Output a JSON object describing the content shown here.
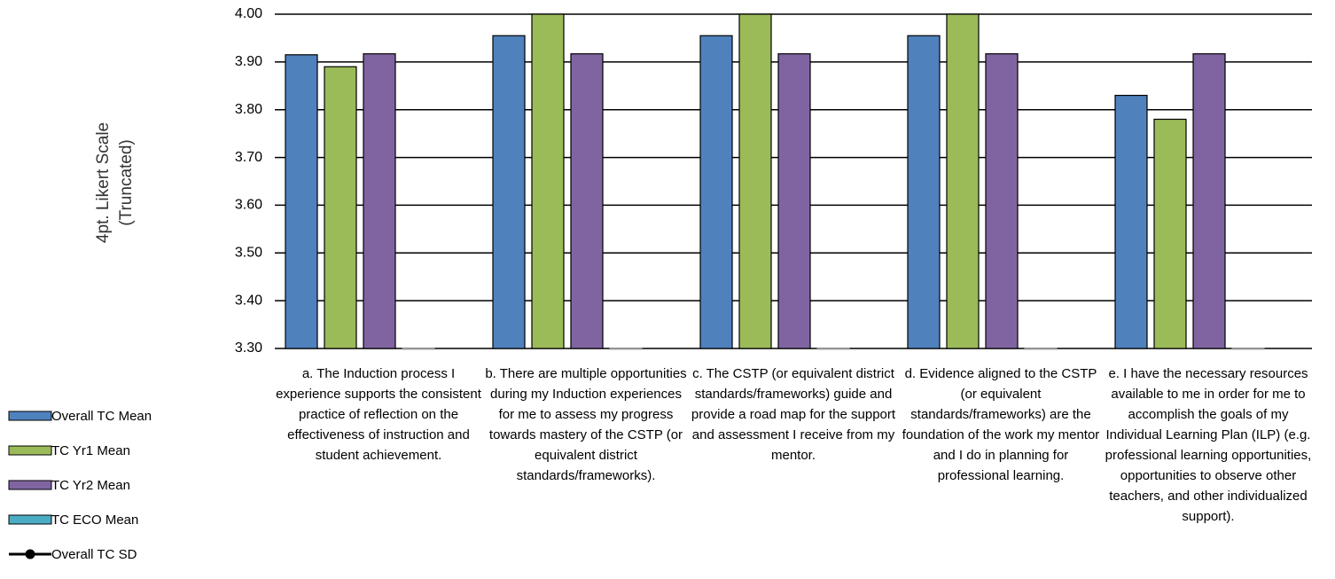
{
  "chart_data": {
    "type": "bar",
    "ylabel": "4pt. Likert Scale (Truncated)",
    "categories": [
      "a. The Induction process I experience supports the consistent practice of reflection on the effectiveness of instruction and student achievement.",
      "b. There are multiple opportunities during my Induction experiences for me to assess my progress towards mastery of the CSTP (or equivalent district standards/frameworks).",
      "c. The CSTP (or equivalent district standards/frameworks) guide and provide a road map for the support and assessment I receive from my mentor.",
      "d. Evidence aligned to the CSTP (or equivalent standards/frameworks) are the foundation of the work my mentor and I do in planning for professional learning.",
      "e. I have the necessary resources available to me in order for me to accomplish the goals of my Individual Learning Plan (ILP) (e.g. professional learning opportunities, opportunities to observe other teachers, and other individualized support)."
    ],
    "series": [
      {
        "name": "Overall TC Mean",
        "color": "#4f81bd",
        "values": [
          3.915,
          3.955,
          3.955,
          3.955,
          3.83
        ]
      },
      {
        "name": "TC Yr1 Mean",
        "color": "#9bbb59",
        "values": [
          3.89,
          4.0,
          4.0,
          4.0,
          3.78
        ]
      },
      {
        "name": "TC Yr2 Mean",
        "color": "#8064a2",
        "values": [
          3.917,
          3.917,
          3.917,
          3.917,
          3.917
        ]
      },
      {
        "name": "TC ECO Mean",
        "color": "#4bacc6",
        "values": [
          0,
          0,
          0,
          0,
          0
        ]
      },
      {
        "name": "Overall TC SD",
        "color": "#000000",
        "type": "line",
        "values": [
          null,
          null,
          null,
          null,
          null
        ]
      }
    ],
    "ylim": [
      3.3,
      4.0
    ],
    "yticks": [
      {
        "value": 3.3,
        "label": "3.30"
      },
      {
        "value": 3.4,
        "label": "3.40"
      },
      {
        "value": 3.5,
        "label": "3.50"
      },
      {
        "value": 3.6,
        "label": "3.60"
      },
      {
        "value": 3.7,
        "label": "3.70"
      },
      {
        "value": 3.8,
        "label": "3.80"
      },
      {
        "value": 3.9,
        "label": "3.90"
      },
      {
        "value": 4.0,
        "label": "4.00"
      }
    ],
    "grid": true,
    "legend": "left"
  }
}
